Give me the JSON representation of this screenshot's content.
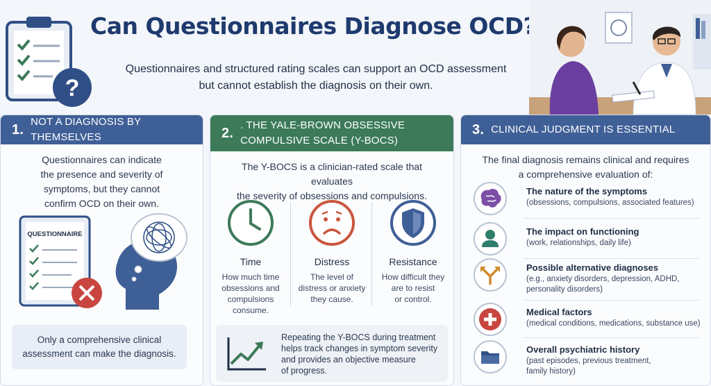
{
  "header": {
    "title": "Can Questionnaires Diagnose OCD?",
    "subtitle_line1": "Questionnaires and structured rating scales can support an OCD assessment",
    "subtitle_line2": "but cannot establish the diagnosis on their own."
  },
  "panel1": {
    "number": "1.",
    "title": "NOT A DIAGNOSIS BY THEMSELVES",
    "body": [
      "Questionnaires can indicate",
      "the presence and severity of",
      "symptoms, but they cannot",
      "confirm OCD on their own."
    ],
    "questionnaire_label": "QUESTIONNAIRE",
    "note": [
      "Only a comprehensive clinical",
      "assessment can make the diagnosis."
    ]
  },
  "panel2": {
    "number": "2.",
    "title_line1": ". THE YALE-BROWN OBSESSIVE",
    "title_line2": "COMPULSIVE SCALE (Y-BOCS)",
    "body": [
      "The Y-BOCS is a clinician-rated scale that evaluates",
      "the severity of obsessions and compulsions."
    ],
    "factors": [
      {
        "title": "Time",
        "desc": [
          "How much time",
          "obsessions and",
          "compulsions",
          "consume."
        ],
        "icon": "clock-icon",
        "color": "#3c7a5a"
      },
      {
        "title": "Distress",
        "desc": [
          "The level of",
          "distress or anxiety",
          "they cause."
        ],
        "icon": "sad-face-icon",
        "color": "#c9563f"
      },
      {
        "title": "Resistance",
        "desc": [
          "How difficult they",
          "are to resist",
          "or control."
        ],
        "icon": "shield-icon",
        "color": "#3f5f97"
      }
    ],
    "tracking": [
      "Repeating the Y-BOCS during treatment",
      "helps track changes in symptom severity",
      "and provides an objective measure",
      "of progress."
    ]
  },
  "panel3": {
    "number": "3.",
    "title": "CLINICAL JUDGMENT IS ESSENTIAL",
    "body": [
      "The final diagnosis remains clinical and requires",
      "a comprehensive evaluation of:"
    ],
    "items": [
      {
        "title": "The nature of the symptoms",
        "desc": [
          "(obsessions, compulsions, associated features)"
        ],
        "icon": "brain-icon",
        "color": "#7b4fa6"
      },
      {
        "title": "The impact on functioning",
        "desc": [
          "(work, relationships, daily life)"
        ],
        "icon": "person-icon",
        "color": "#2f7d6b"
      },
      {
        "title": "Possible alternative diagnoses",
        "desc": [
          "(e.g., anxiety disorders, depression, ADHD,",
          "personality disorders)"
        ],
        "icon": "split-arrow-icon",
        "color": "#d08a2b"
      },
      {
        "title": "Medical factors",
        "desc": [
          "(medical conditions, medications, substance use)"
        ],
        "icon": "medical-cross-icon",
        "color": "#c9453f"
      },
      {
        "title": "Overall psychiatric history",
        "desc": [
          "(past episodes, previous treatment,",
          "family history)"
        ],
        "icon": "folder-icon",
        "color": "#2f4f86"
      }
    ]
  }
}
